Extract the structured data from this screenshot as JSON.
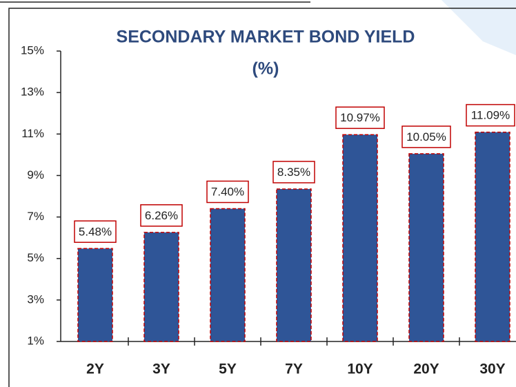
{
  "chart_data": {
    "type": "bar",
    "title": [
      "SECONDARY MARKET BOND YIELD",
      "(%)"
    ],
    "categories": [
      "2Y",
      "3Y",
      "5Y",
      "7Y",
      "10Y",
      "20Y",
      "30Y"
    ],
    "values": [
      5.48,
      6.26,
      7.4,
      8.35,
      10.97,
      10.05,
      11.09
    ],
    "value_labels": [
      "5.48%",
      "6.26%",
      "7.40%",
      "8.35%",
      "10.97%",
      "10.05%",
      "11.09%"
    ],
    "color": "#2f5597",
    "ylim": [
      1,
      15
    ],
    "yticks": [
      {
        "value": 1,
        "label": "1%"
      },
      {
        "value": 3,
        "label": "3%"
      },
      {
        "value": 5,
        "label": "5%"
      },
      {
        "value": 7,
        "label": "7%"
      },
      {
        "value": 9,
        "label": "9%"
      },
      {
        "value": 11,
        "label": "11%"
      },
      {
        "value": 13,
        "label": "13%"
      },
      {
        "value": 15,
        "label": "15%"
      }
    ],
    "grid": false
  }
}
